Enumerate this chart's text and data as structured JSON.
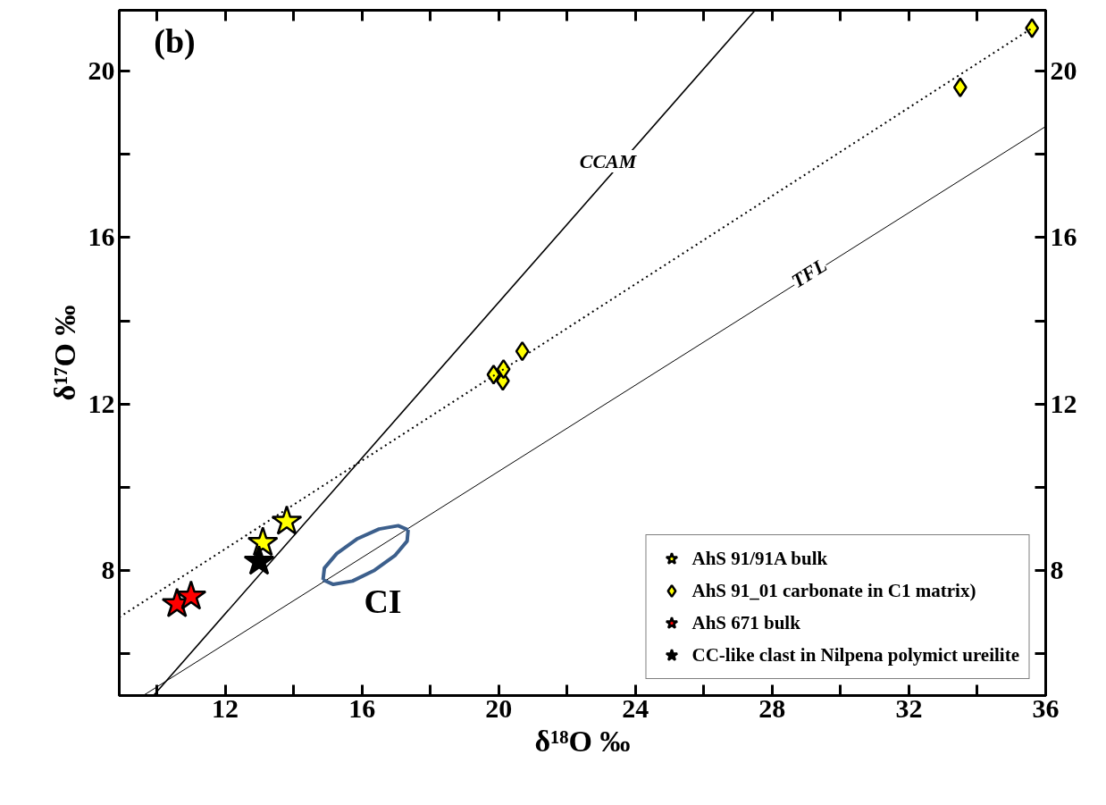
{
  "chart_data": {
    "type": "scatter",
    "xlabel": "δ¹⁸O ‰",
    "ylabel": "δ¹⁷O ‰",
    "xlim": [
      8.9,
      36
    ],
    "ylim": [
      5.0,
      21.46
    ],
    "y2lim": [
      5.0,
      21.46
    ],
    "xticks": [
      {
        "value": 10,
        "label": null
      },
      12,
      {
        "value": 14,
        "label": null
      },
      16,
      {
        "value": 18,
        "label": null
      },
      20,
      {
        "value": 22,
        "label": null
      },
      24,
      {
        "value": 26,
        "label": null
      },
      28,
      {
        "value": 30,
        "label": null
      },
      32,
      {
        "value": 34,
        "label": null
      },
      36
    ],
    "yticks": [
      {
        "value": 6,
        "label": null
      },
      8,
      {
        "value": 10,
        "label": null
      },
      12,
      {
        "value": 14,
        "label": null
      },
      16,
      {
        "value": 18,
        "label": null
      },
      20
    ],
    "y2ticks": [
      {
        "value": 6,
        "label": null
      },
      8,
      {
        "value": 10,
        "label": null
      },
      12,
      {
        "value": 14,
        "label": null
      },
      16,
      {
        "value": 18,
        "label": null
      },
      20
    ],
    "grid": false,
    "legend": "bottom right",
    "series": [
      {
        "name": "AhS 91/91A bulk",
        "marker": "star",
        "color": "#ffff00",
        "x": [
          13.1,
          13.8
        ],
        "values": [
          8.67,
          9.18
        ]
      },
      {
        "name": "AhS 91_01 carbonate in C1 matrix)",
        "marker": "diamond",
        "color": "#ffff00",
        "x": [
          19.85,
          20.12,
          20.14,
          20.69,
          33.5,
          35.6
        ],
        "values": [
          12.71,
          12.56,
          12.84,
          13.27,
          19.61,
          21.03
        ]
      },
      {
        "name": "AhS 671 bulk",
        "marker": "star",
        "color": "#ff0000",
        "x": [
          10.59,
          11.0
        ],
        "values": [
          7.2,
          7.38
        ]
      },
      {
        "name": "CC-like clast in Nilpena polymict ureilite",
        "marker": "star",
        "color": "#000000",
        "x": [
          12.99
        ],
        "values": [
          8.22
        ]
      },
      {
        "type": "line",
        "color": "#000000",
        "line_style": "solid",
        "x": [
          9.9,
          27.5
        ],
        "values": [
          5.0,
          21.46
        ]
      },
      {
        "type": "line",
        "color": "#000000",
        "line_style": "solid",
        "x": [
          9.6,
          36.0
        ],
        "values": [
          5.0,
          18.67
        ]
      },
      {
        "type": "line",
        "color": "#000000",
        "line_style": "dotted",
        "x": [
          8.9,
          35.6
        ],
        "values": [
          6.88,
          21.03
        ]
      },
      {
        "type": "line",
        "color": "#3c5f8c",
        "line_style": "solid",
        "x": [
          14.86,
          15.16,
          15.72,
          16.37,
          16.96,
          17.32,
          17.35
        ],
        "values": [
          7.78,
          7.67,
          7.75,
          8.01,
          8.36,
          8.71,
          8.98
        ]
      },
      {
        "type": "line",
        "color": "#3c5f8c",
        "line_style": "solid",
        "x": [
          14.86,
          14.9,
          15.26,
          15.85,
          16.5,
          17.06,
          17.35
        ],
        "values": [
          7.78,
          8.06,
          8.41,
          8.76,
          9.0,
          9.08,
          8.98
        ]
      }
    ],
    "annotations": [
      "(b)",
      "CCAM",
      "TFL",
      "CI"
    ]
  }
}
